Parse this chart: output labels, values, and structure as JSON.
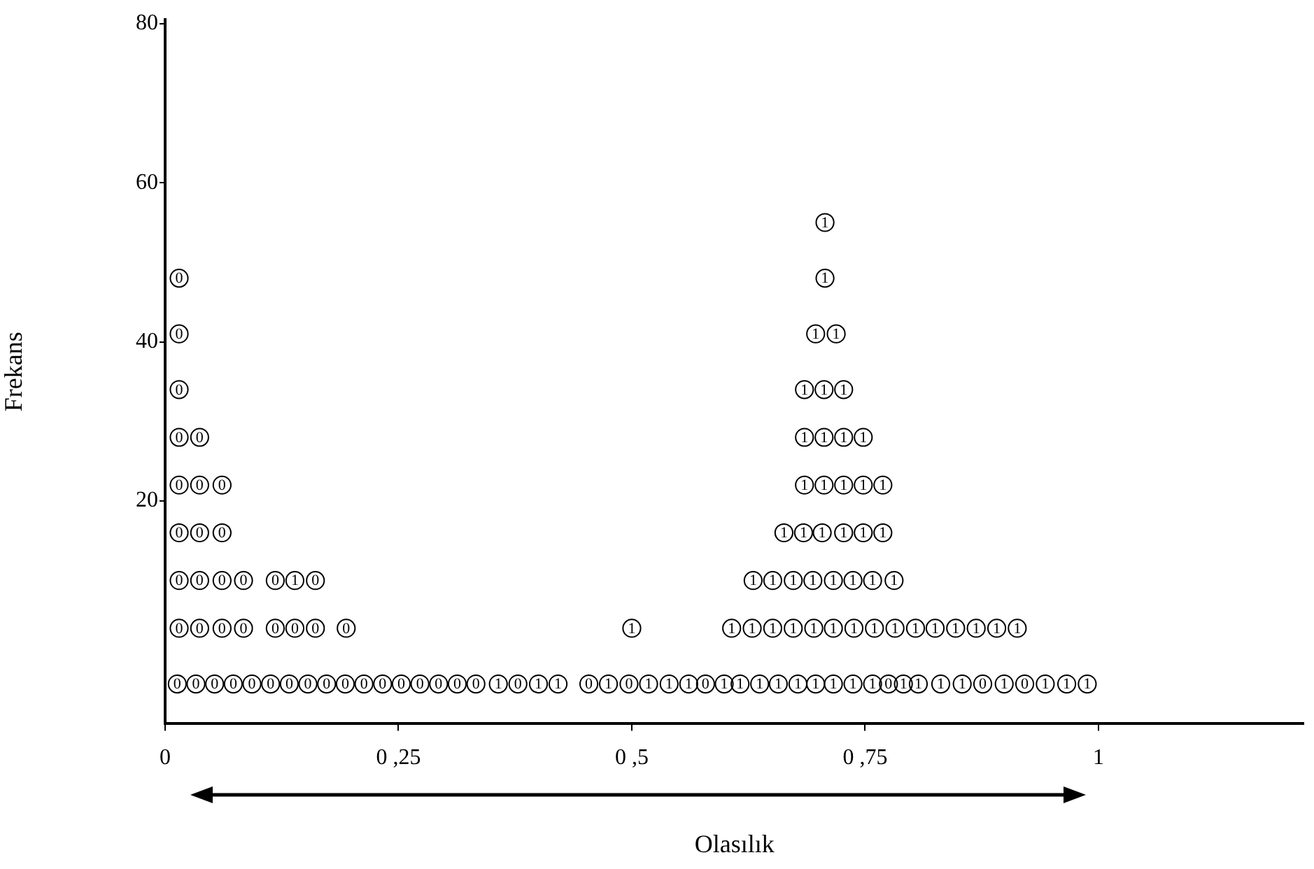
{
  "chart_data": {
    "type": "scatter",
    "xlabel": "Olasılık",
    "ylabel": "Frekans",
    "xlim": [
      0,
      1.22
    ],
    "ylim": [
      -8,
      80.5
    ],
    "xticks": [
      0,
      {
        "value": 0.25,
        "label": "0 ,25"
      },
      {
        "value": 0.5,
        "label": "0 ,5"
      },
      {
        "value": 0.75,
        "label": "0 ,75"
      },
      1
    ],
    "yticks": [
      20,
      40,
      60,
      80
    ],
    "grid": false,
    "legend": false,
    "series": [
      {
        "name": "0",
        "marker": "circle",
        "color": "#000000",
        "x": [
          0.013,
          0.033,
          0.053,
          0.073,
          0.093,
          0.113,
          0.133,
          0.153,
          0.173,
          0.193,
          0.213,
          0.233,
          0.253,
          0.273,
          0.293,
          0.313,
          0.333,
          0.378,
          0.454,
          0.497,
          0.579,
          0.775,
          0.876,
          0.921,
          0.015,
          0.037,
          0.061,
          0.084,
          0.118,
          0.139,
          0.161,
          0.194,
          0.015,
          0.037,
          0.061,
          0.084,
          0.118,
          0.161,
          0.015,
          0.037,
          0.061,
          0.015,
          0.037,
          0.061,
          0.015,
          0.037,
          0.015,
          0.015,
          0.015
        ],
        "values": [
          -3,
          -3,
          -3,
          -3,
          -3,
          -3,
          -3,
          -3,
          -3,
          -3,
          -3,
          -3,
          -3,
          -3,
          -3,
          -3,
          -3,
          -3,
          -3,
          -3,
          -3,
          -3,
          -3,
          -3,
          4,
          4,
          4,
          4,
          4,
          4,
          4,
          4,
          10,
          10,
          10,
          10,
          10,
          10,
          16,
          16,
          16,
          22,
          22,
          22,
          28,
          28,
          34,
          41,
          48
        ]
      },
      {
        "name": "1",
        "marker": "circle",
        "color": "#000000",
        "x": [
          0.357,
          0.4,
          0.421,
          0.475,
          0.518,
          0.54,
          0.561,
          0.599,
          0.616,
          0.637,
          0.657,
          0.678,
          0.697,
          0.716,
          0.737,
          0.758,
          0.791,
          0.807,
          0.831,
          0.854,
          0.899,
          0.943,
          0.966,
          0.988,
          0.5,
          0.607,
          0.629,
          0.651,
          0.673,
          0.695,
          0.716,
          0.738,
          0.76,
          0.782,
          0.804,
          0.825,
          0.847,
          0.869,
          0.891,
          0.913,
          0.139,
          0.63,
          0.651,
          0.673,
          0.694,
          0.716,
          0.737,
          0.758,
          0.781,
          0.663,
          0.684,
          0.704,
          0.727,
          0.748,
          0.769,
          0.685,
          0.706,
          0.727,
          0.748,
          0.769,
          0.685,
          0.706,
          0.727,
          0.748,
          0.685,
          0.706,
          0.727,
          0.697,
          0.719,
          0.707,
          0.707
        ],
        "values": [
          -3,
          -3,
          -3,
          -3,
          -3,
          -3,
          -3,
          -3,
          -3,
          -3,
          -3,
          -3,
          -3,
          -3,
          -3,
          -3,
          -3,
          -3,
          -3,
          -3,
          -3,
          -3,
          -3,
          -3,
          4,
          4,
          4,
          4,
          4,
          4,
          4,
          4,
          4,
          4,
          4,
          4,
          4,
          4,
          4,
          4,
          10,
          10,
          10,
          10,
          10,
          10,
          10,
          10,
          10,
          16,
          16,
          16,
          16,
          16,
          16,
          22,
          22,
          22,
          22,
          22,
          28,
          28,
          28,
          28,
          34,
          34,
          34,
          41,
          41,
          48,
          55
        ]
      }
    ]
  }
}
